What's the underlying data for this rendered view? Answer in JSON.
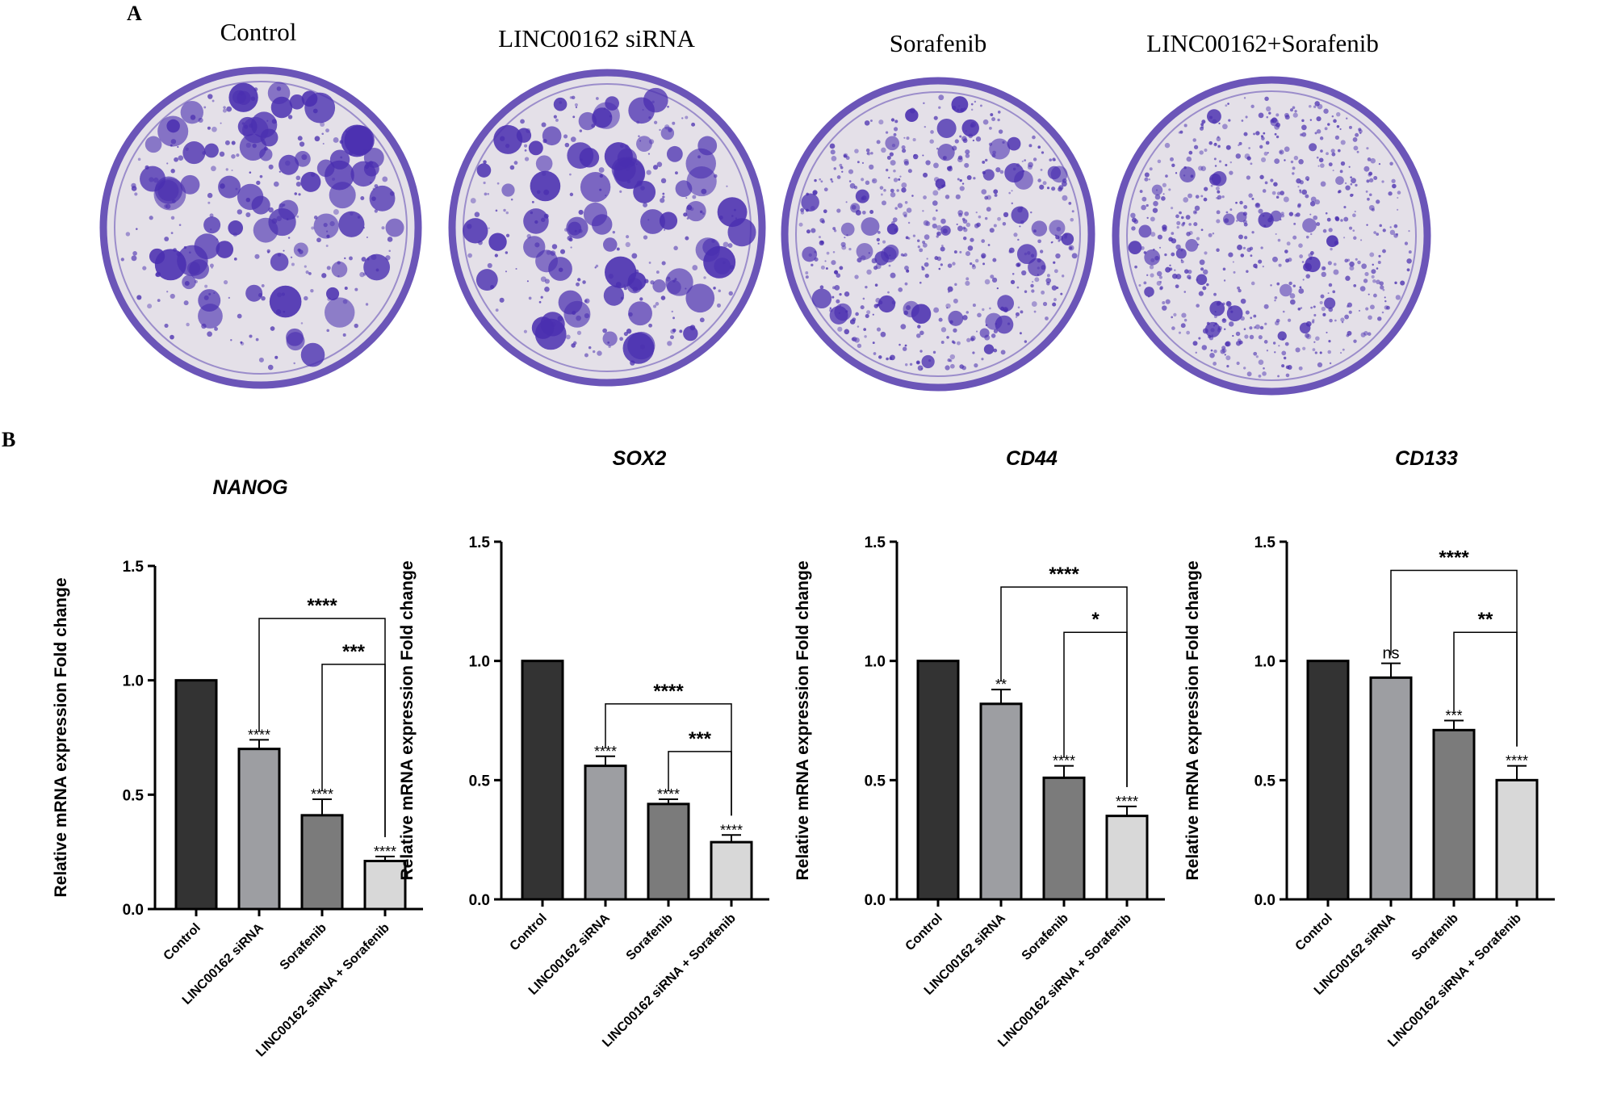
{
  "panel_a": {
    "letter": "A",
    "plates": [
      {
        "label": "Control",
        "density": "high"
      },
      {
        "label": "LINC00162 siRNA",
        "density": "high"
      },
      {
        "label": "Sorafenib",
        "density": "medium"
      },
      {
        "label": "LINC00162+Sorafenib",
        "density": "low"
      }
    ],
    "colors": {
      "stain": "#4a2fb0",
      "dish_bg": "#e4e0e8",
      "rim": "#6b55b8"
    }
  },
  "panel_b": {
    "letter": "B"
  },
  "chart_data": [
    {
      "type": "bar",
      "title": "NANOG",
      "categories": [
        "Control",
        "LINC00162 siRNA",
        "Sorafenib",
        "LINC00162 siRNA + Sorafenib"
      ],
      "values": [
        1.0,
        0.7,
        0.41,
        0.21
      ],
      "errors": [
        0,
        0.04,
        0.07,
        0.02
      ],
      "bar_labels": [
        "",
        "****",
        "****",
        "****"
      ],
      "ylabel": "Relative mRNA expression Fold change",
      "ylim": [
        0,
        1.5
      ],
      "yticks": [
        "0.0",
        "0.5",
        "1.0",
        "1.5"
      ],
      "brackets": [
        {
          "from": 1,
          "to": 3,
          "label": "****",
          "y": 1.27
        },
        {
          "from": 2,
          "to": 3,
          "label": "***",
          "y": 1.07
        }
      ]
    },
    {
      "type": "bar",
      "title": "SOX2",
      "categories": [
        "Control",
        "LINC00162 siRNA",
        "Sorafenib",
        "LINC00162 siRNA + Sorafenib"
      ],
      "values": [
        1.0,
        0.56,
        0.4,
        0.24
      ],
      "errors": [
        0,
        0.04,
        0.02,
        0.03
      ],
      "bar_labels": [
        "",
        "****",
        "****",
        "****"
      ],
      "ylabel": "Relative mRNA expression Fold change",
      "ylim": [
        0,
        1.5
      ],
      "yticks": [
        "0.0",
        "0.5",
        "1.0",
        "1.5"
      ],
      "brackets": [
        {
          "from": 1,
          "to": 3,
          "label": "****",
          "y": 0.82
        },
        {
          "from": 2,
          "to": 3,
          "label": "***",
          "y": 0.62
        }
      ]
    },
    {
      "type": "bar",
      "title": "CD44",
      "categories": [
        "Control",
        "LINC00162 siRNA",
        "Sorafenib",
        "LINC00162 siRNA + Sorafenib"
      ],
      "values": [
        1.0,
        0.82,
        0.51,
        0.35
      ],
      "errors": [
        0,
        0.06,
        0.05,
        0.04
      ],
      "bar_labels": [
        "",
        "**",
        "****",
        "****"
      ],
      "ylabel": "Relative mRNA expression Fold change",
      "ylim": [
        0,
        1.5
      ],
      "yticks": [
        "0.0",
        "0.5",
        "1.0",
        "1.5"
      ],
      "brackets": [
        {
          "from": 1,
          "to": 3,
          "label": "****",
          "y": 1.31
        },
        {
          "from": 2,
          "to": 3,
          "label": "*",
          "y": 1.12
        }
      ]
    },
    {
      "type": "bar",
      "title": "CD133",
      "categories": [
        "Control",
        "LINC00162 siRNA",
        "Sorafenib",
        "LINC00162 siRNA + Sorafenib"
      ],
      "values": [
        1.0,
        0.93,
        0.71,
        0.5
      ],
      "errors": [
        0,
        0.06,
        0.04,
        0.06
      ],
      "bar_labels": [
        "",
        "ns",
        "***",
        "****"
      ],
      "ylabel": "Relative mRNA expression Fold change",
      "ylim": [
        0,
        1.5
      ],
      "yticks": [
        "0.0",
        "0.5",
        "1.0",
        "1.5"
      ],
      "brackets": [
        {
          "from": 1,
          "to": 3,
          "label": "****",
          "y": 1.38
        },
        {
          "from": 2,
          "to": 3,
          "label": "**",
          "y": 1.12
        }
      ]
    }
  ],
  "bar_colors": [
    "#333333",
    "#9d9ea2",
    "#7b7b7b",
    "#d8d8d8"
  ]
}
